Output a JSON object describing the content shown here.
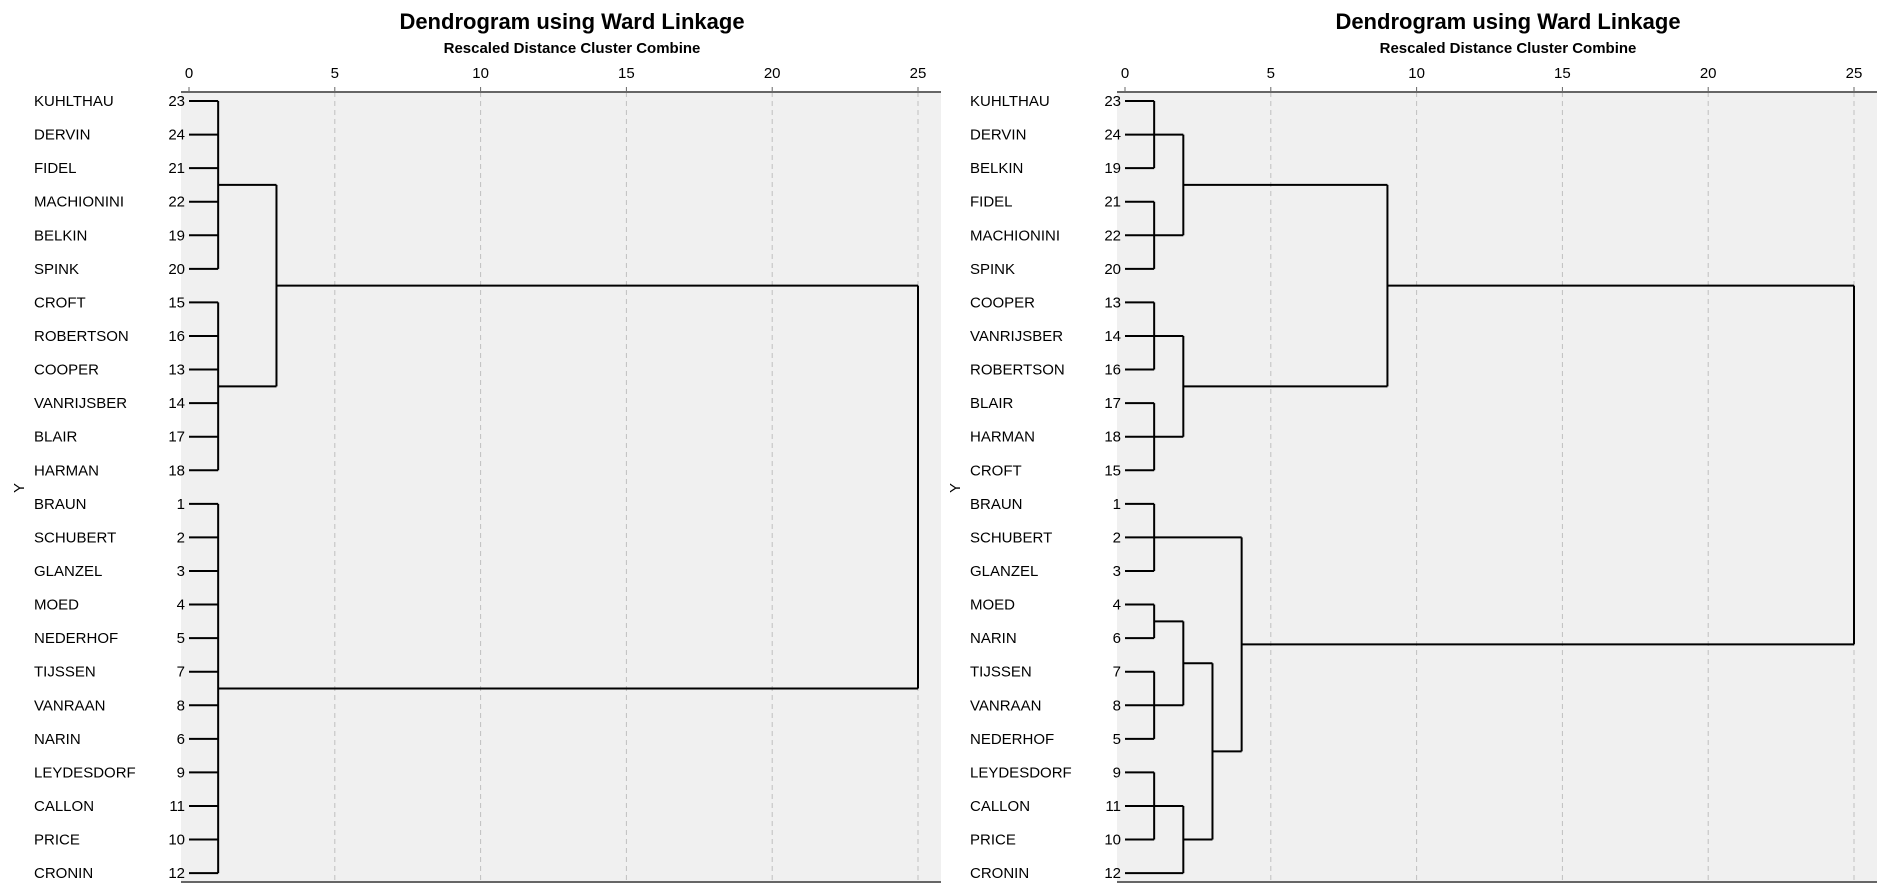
{
  "colors": {
    "plot_bg": "#f0f0f0",
    "axis": "#666666",
    "grid": "#bfbfbf",
    "line": "#000000",
    "text": "#000000"
  },
  "chart_data": [
    {
      "type": "dendrogram",
      "title": "Dendrogram using Ward Linkage",
      "xlabel": "Rescaled Distance Cluster Combine",
      "ylabel": "Y",
      "xlim": [
        0,
        25
      ],
      "ticks": [
        0,
        5,
        10,
        15,
        20,
        25
      ],
      "grid": true,
      "leaves": [
        {
          "name": "KUHLTHAU",
          "id": "23"
        },
        {
          "name": "DERVIN",
          "id": "24"
        },
        {
          "name": "FIDEL",
          "id": "21"
        },
        {
          "name": "MACHIONINI",
          "id": "22"
        },
        {
          "name": "BELKIN",
          "id": "19"
        },
        {
          "name": "SPINK",
          "id": "20"
        },
        {
          "name": "CROFT",
          "id": "15"
        },
        {
          "name": "ROBERTSON",
          "id": "16"
        },
        {
          "name": "COOPER",
          "id": "13"
        },
        {
          "name": "VANRIJSBER",
          "id": "14"
        },
        {
          "name": "BLAIR",
          "id": "17"
        },
        {
          "name": "HARMAN",
          "id": "18"
        },
        {
          "name": "BRAUN",
          "id": "1"
        },
        {
          "name": "SCHUBERT",
          "id": "2"
        },
        {
          "name": "GLANZEL",
          "id": "3"
        },
        {
          "name": "MOED",
          "id": "4"
        },
        {
          "name": "NEDERHOF",
          "id": "5"
        },
        {
          "name": "TIJSSEN",
          "id": "7"
        },
        {
          "name": "VANRAAN",
          "id": "8"
        },
        {
          "name": "NARIN",
          "id": "6"
        },
        {
          "name": "LEYDESDORF",
          "id": "9"
        },
        {
          "name": "CALLON",
          "id": "11"
        },
        {
          "name": "PRICE",
          "id": "10"
        },
        {
          "name": "CRONIN",
          "id": "12"
        }
      ],
      "merges": [
        {
          "children": [
            0,
            1,
            2,
            3,
            4,
            5
          ],
          "distance": 1
        },
        {
          "children": [
            6,
            7,
            8,
            9,
            10,
            11
          ],
          "distance": 1
        },
        {
          "children": [
            24,
            25
          ],
          "distance": 3
        },
        {
          "children": [
            12,
            13,
            14,
            15,
            16,
            17,
            18,
            19,
            20,
            21,
            22,
            23
          ],
          "distance": 1
        },
        {
          "children": [
            26,
            27
          ],
          "distance": 25
        }
      ]
    },
    {
      "type": "dendrogram",
      "title": "Dendrogram using Ward Linkage",
      "xlabel": "Rescaled Distance Cluster Combine",
      "ylabel": "Y",
      "xlim": [
        0,
        25
      ],
      "ticks": [
        0,
        5,
        10,
        15,
        20,
        25
      ],
      "grid": true,
      "leaves": [
        {
          "name": "KUHLTHAU",
          "id": "23"
        },
        {
          "name": "DERVIN",
          "id": "24"
        },
        {
          "name": "BELKIN",
          "id": "19"
        },
        {
          "name": "FIDEL",
          "id": "21"
        },
        {
          "name": "MACHIONINI",
          "id": "22"
        },
        {
          "name": "SPINK",
          "id": "20"
        },
        {
          "name": "COOPER",
          "id": "13"
        },
        {
          "name": "VANRIJSBER",
          "id": "14"
        },
        {
          "name": "ROBERTSON",
          "id": "16"
        },
        {
          "name": "BLAIR",
          "id": "17"
        },
        {
          "name": "HARMAN",
          "id": "18"
        },
        {
          "name": "CROFT",
          "id": "15"
        },
        {
          "name": "BRAUN",
          "id": "1"
        },
        {
          "name": "SCHUBERT",
          "id": "2"
        },
        {
          "name": "GLANZEL",
          "id": "3"
        },
        {
          "name": "MOED",
          "id": "4"
        },
        {
          "name": "NARIN",
          "id": "6"
        },
        {
          "name": "TIJSSEN",
          "id": "7"
        },
        {
          "name": "VANRAAN",
          "id": "8"
        },
        {
          "name": "NEDERHOF",
          "id": "5"
        },
        {
          "name": "LEYDESDORF",
          "id": "9"
        },
        {
          "name": "CALLON",
          "id": "11"
        },
        {
          "name": "PRICE",
          "id": "10"
        },
        {
          "name": "CRONIN",
          "id": "12"
        }
      ],
      "merges": [
        {
          "children": [
            0,
            1,
            2
          ],
          "distance": 1
        },
        {
          "children": [
            3,
            4,
            5
          ],
          "distance": 1
        },
        {
          "children": [
            24,
            25
          ],
          "distance": 2
        },
        {
          "children": [
            6,
            7,
            8
          ],
          "distance": 1
        },
        {
          "children": [
            9,
            10,
            11
          ],
          "distance": 1
        },
        {
          "children": [
            27,
            28
          ],
          "distance": 2
        },
        {
          "children": [
            26,
            29
          ],
          "distance": 9
        },
        {
          "children": [
            12,
            13,
            14
          ],
          "distance": 1
        },
        {
          "children": [
            15,
            16
          ],
          "distance": 1
        },
        {
          "children": [
            17,
            18,
            19
          ],
          "distance": 1
        },
        {
          "children": [
            32,
            33
          ],
          "distance": 2
        },
        {
          "children": [
            20,
            21,
            22
          ],
          "distance": 1
        },
        {
          "children": [
            35,
            23
          ],
          "distance": 2
        },
        {
          "children": [
            34,
            36
          ],
          "distance": 3
        },
        {
          "children": [
            31,
            37
          ],
          "distance": 4
        },
        {
          "children": [
            30,
            38
          ],
          "distance": 25
        }
      ]
    }
  ]
}
